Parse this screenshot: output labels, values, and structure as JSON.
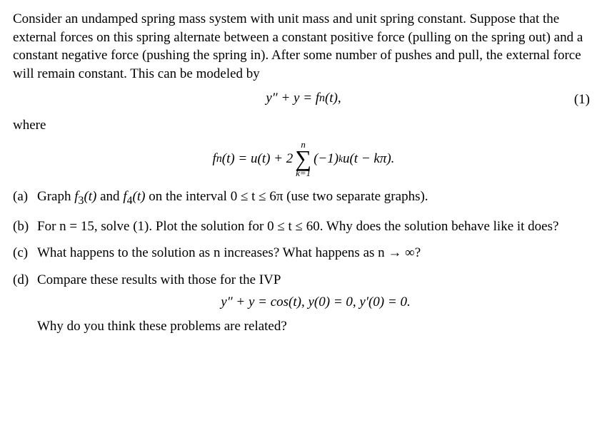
{
  "intro": "Consider an undamped spring mass system with unit mass and unit spring constant. Suppose that the external forces on this spring alternate between a constant positive force (pulling on the spring out) and a constant negative force (pushing the spring in). After some number of pushes and pull, the external force will remain constant. This can be modeled by",
  "eq1_pre": "y″ + y = f",
  "eq1_sub": "n",
  "eq1_post": "(t),",
  "eq1_label": "(1)",
  "where": "where",
  "fn_pre": "f",
  "fn_sub": "n",
  "fn_mid": "(t) = u(t) + 2",
  "sum_top": "n",
  "sum_bot": "k=1",
  "sum_post_a": "(−1)",
  "sum_sup": "k",
  "sum_post_b": "u(t − kπ).",
  "items": {
    "a": {
      "marker": "(a)",
      "pre": "Graph ",
      "f3": "f",
      "f3sub": "3",
      "f3t": "(t)",
      "and": " and ",
      "f4": "f",
      "f4sub": "4",
      "f4t": "(t)",
      "post": " on the interval 0 ≤ t ≤ 6π (use two separate graphs)."
    },
    "b": {
      "marker": "(b)",
      "text": "For n = 15, solve (1). Plot the solution for 0 ≤ t ≤ 60. Why does the solution behave like it does?"
    },
    "c": {
      "marker": "(c)",
      "text": "What happens to the solution as n increases? What happens as n → ∞?"
    },
    "d": {
      "marker": "(d)",
      "text": "Compare these results with those for the IVP",
      "eq": "y″ + y = cos(t),   y(0) = 0,   y′(0) = 0.",
      "after": "Why do you think these problems are related?"
    }
  }
}
